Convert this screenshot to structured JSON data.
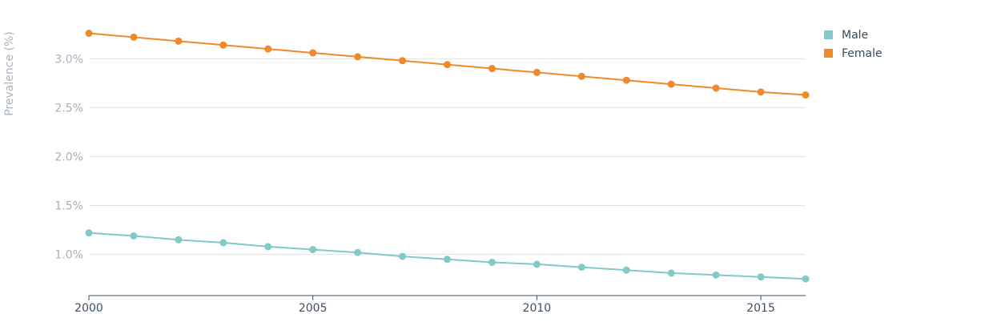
{
  "chart_data": {
    "type": "line",
    "ylabel": "Prevalence (%)",
    "x": [
      2000,
      2001,
      2002,
      2003,
      2004,
      2005,
      2006,
      2007,
      2008,
      2009,
      2010,
      2011,
      2012,
      2013,
      2014,
      2015,
      2016
    ],
    "xticks": [
      "2000",
      "2005",
      "2010",
      "2015"
    ],
    "yticks": [
      "1.0%",
      "1.5%",
      "2.0%",
      "2.5%",
      "3.0%"
    ],
    "ylim": [
      0.58,
      3.42
    ],
    "xlim": [
      2000,
      2016
    ],
    "grid": true,
    "legend_position": "top-right",
    "series": [
      {
        "name": "Male",
        "color": "#83c9c8",
        "values": [
          1.22,
          1.19,
          1.15,
          1.12,
          1.08,
          1.05,
          1.02,
          0.98,
          0.95,
          0.92,
          0.9,
          0.87,
          0.84,
          0.81,
          0.79,
          0.77,
          0.75
        ]
      },
      {
        "name": "Female",
        "color": "#f0892a",
        "values": [
          3.26,
          3.22,
          3.18,
          3.14,
          3.1,
          3.06,
          3.02,
          2.98,
          2.94,
          2.9,
          2.86,
          2.82,
          2.78,
          2.74,
          2.7,
          2.66,
          2.63
        ]
      }
    ]
  }
}
